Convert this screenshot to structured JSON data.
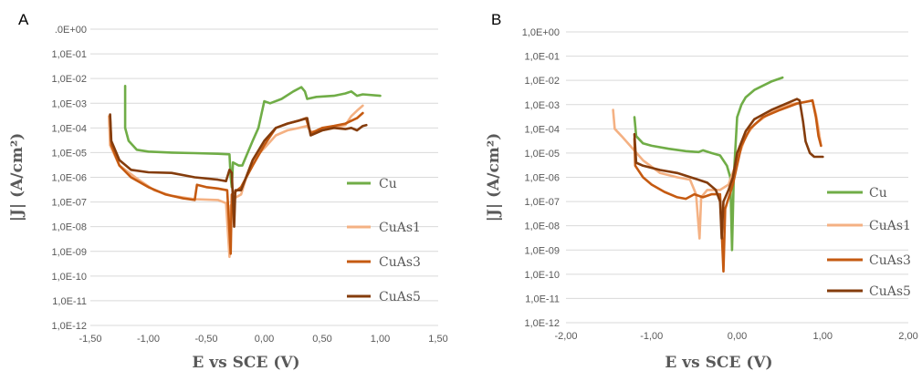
{
  "chart_data": [
    {
      "type": "line",
      "panel_label": "A",
      "xlabel": "E vs SCE (V)",
      "ylabel": "|J| (A/cm²)",
      "x_scale": "linear",
      "y_scale": "log",
      "xlim": [
        -1.5,
        1.5
      ],
      "ylim": [
        1e-12,
        1
      ],
      "x_ticks": [
        "-1,50",
        "-1,00",
        "-0,50",
        "0,00",
        "0,50",
        "1,00",
        "1,50"
      ],
      "y_ticks": [
        ".0E+00",
        "1,0E-01",
        "1,0E-02",
        "1,0E-03",
        "1,0E-04",
        "1,0E-05",
        "1,0E-06",
        "1,0E-07",
        "1,0E-08",
        "1,0E-09",
        "1,0E-10",
        "1,0E-11",
        "1,0E-12"
      ],
      "grid": "horizontal",
      "legend_position": "right",
      "series": [
        {
          "name": "Cu",
          "color": "#70ad47",
          "points": [
            [
              -1.2,
              0.005
            ],
            [
              -1.2,
              0.0001
            ],
            [
              -1.17,
              3e-05
            ],
            [
              -1.1,
              1.3e-05
            ],
            [
              -1.0,
              1.1e-05
            ],
            [
              -0.8,
              1e-05
            ],
            [
              -0.6,
              9.5e-06
            ],
            [
              -0.4,
              9e-06
            ],
            [
              -0.3,
              8.5e-06
            ],
            [
              -0.29,
              1e-06
            ],
            [
              -0.28,
              4e-07
            ],
            [
              -0.27,
              4e-06
            ],
            [
              -0.22,
              3e-06
            ],
            [
              -0.19,
              3e-06
            ],
            [
              -0.1,
              3e-05
            ],
            [
              -0.05,
              0.0001
            ],
            [
              0.0,
              0.0012
            ],
            [
              0.05,
              0.001
            ],
            [
              0.15,
              0.0015
            ],
            [
              0.25,
              0.003
            ],
            [
              0.32,
              0.0045
            ],
            [
              0.35,
              0.003
            ],
            [
              0.37,
              0.0015
            ],
            [
              0.45,
              0.0018
            ],
            [
              0.6,
              0.002
            ],
            [
              0.7,
              0.0025
            ],
            [
              0.75,
              0.003
            ],
            [
              0.8,
              0.002
            ],
            [
              0.85,
              0.0023
            ],
            [
              1.0,
              0.002
            ]
          ]
        },
        {
          "name": "CuAs1",
          "color": "#f4b183",
          "points": [
            [
              -1.34,
              0.0003
            ],
            [
              -1.33,
              2e-05
            ],
            [
              -1.25,
              3e-06
            ],
            [
              -1.1,
              9e-07
            ],
            [
              -0.95,
              3e-07
            ],
            [
              -0.8,
              1.8e-07
            ],
            [
              -0.6,
              1.3e-07
            ],
            [
              -0.4,
              1.2e-07
            ],
            [
              -0.33,
              9e-08
            ],
            [
              -0.3,
              6e-10
            ],
            [
              -0.29,
              7e-08
            ],
            [
              -0.25,
              1.5e-07
            ],
            [
              -0.2,
              2e-07
            ],
            [
              -0.15,
              1.2e-06
            ],
            [
              -0.1,
              5e-06
            ],
            [
              0.0,
              1.5e-05
            ],
            [
              0.1,
              5e-05
            ],
            [
              0.2,
              8e-05
            ],
            [
              0.3,
              0.0001
            ],
            [
              0.37,
              0.00012
            ],
            [
              0.4,
              7e-05
            ],
            [
              0.5,
              8e-05
            ],
            [
              0.6,
              0.0001
            ],
            [
              0.7,
              0.00013
            ],
            [
              0.75,
              0.0003
            ],
            [
              0.8,
              0.0005
            ],
            [
              0.85,
              0.0008
            ]
          ]
        },
        {
          "name": "CuAs3",
          "color": "#c55a11",
          "points": [
            [
              -1.33,
              0.0003
            ],
            [
              -1.32,
              2e-05
            ],
            [
              -1.25,
              3e-06
            ],
            [
              -1.15,
              1e-06
            ],
            [
              -1.0,
              4e-07
            ],
            [
              -0.85,
              2e-07
            ],
            [
              -0.7,
              1.4e-07
            ],
            [
              -0.6,
              1.2e-07
            ],
            [
              -0.58,
              5e-07
            ],
            [
              -0.5,
              4e-07
            ],
            [
              -0.4,
              3.5e-07
            ],
            [
              -0.32,
              3e-07
            ],
            [
              -0.29,
              8e-10
            ],
            [
              -0.28,
              2e-07
            ],
            [
              -0.2,
              4e-07
            ],
            [
              -0.1,
              3e-06
            ],
            [
              0.0,
              2e-05
            ],
            [
              0.1,
              0.0001
            ],
            [
              0.2,
              0.00015
            ],
            [
              0.3,
              0.0002
            ],
            [
              0.36,
              0.00025
            ],
            [
              0.4,
              6e-05
            ],
            [
              0.5,
              0.0001
            ],
            [
              0.6,
              0.00012
            ],
            [
              0.7,
              0.00015
            ],
            [
              0.8,
              0.00025
            ],
            [
              0.85,
              0.0004
            ]
          ]
        },
        {
          "name": "CuAs5",
          "color": "#843c0c",
          "points": [
            [
              -1.33,
              0.00035
            ],
            [
              -1.32,
              3e-05
            ],
            [
              -1.25,
              5e-06
            ],
            [
              -1.15,
              2e-06
            ],
            [
              -1.0,
              1.6e-06
            ],
            [
              -0.8,
              1.5e-06
            ],
            [
              -0.6,
              1e-06
            ],
            [
              -0.4,
              8e-07
            ],
            [
              -0.33,
              7e-07
            ],
            [
              -0.3,
              2e-06
            ],
            [
              -0.28,
              1.5e-06
            ],
            [
              -0.26,
              1e-08
            ],
            [
              -0.25,
              3e-07
            ],
            [
              -0.2,
              3e-07
            ],
            [
              -0.1,
              5e-06
            ],
            [
              0.0,
              3e-05
            ],
            [
              0.1,
              0.0001
            ],
            [
              0.2,
              0.00015
            ],
            [
              0.3,
              0.0002
            ],
            [
              0.37,
              0.00025
            ],
            [
              0.4,
              5e-05
            ],
            [
              0.5,
              8e-05
            ],
            [
              0.6,
              0.0001
            ],
            [
              0.7,
              9e-05
            ],
            [
              0.75,
              0.0001
            ],
            [
              0.8,
              8e-05
            ],
            [
              0.85,
              0.00012
            ],
            [
              0.88,
              0.00013
            ]
          ]
        }
      ]
    },
    {
      "type": "line",
      "panel_label": "B",
      "xlabel": "E vs SCE (V)",
      "ylabel": "|J| (A/cm²)",
      "x_scale": "linear",
      "y_scale": "log",
      "xlim": [
        -2,
        2
      ],
      "ylim": [
        1e-12,
        1
      ],
      "x_ticks": [
        "-2,00",
        "-1,00",
        "0,00",
        "1,00",
        "2,00"
      ],
      "y_ticks": [
        "1,0E+00",
        "1,0E-01",
        "1,0E-02",
        "1,0E-03",
        "1,0E-04",
        "1,0E-05",
        "1,0E-06",
        "1,0E-07",
        "1,0E-08",
        "1,0E-09",
        "1,0E-10",
        "1,0E-11",
        "1,0E-12"
      ],
      "grid": "horizontal",
      "legend_position": "right",
      "series": [
        {
          "name": "Cu",
          "color": "#70ad47",
          "points": [
            [
              -1.2,
              0.0003
            ],
            [
              -1.18,
              5e-05
            ],
            [
              -1.1,
              2.5e-05
            ],
            [
              -1.0,
              2e-05
            ],
            [
              -0.8,
              1.5e-05
            ],
            [
              -0.6,
              1.2e-05
            ],
            [
              -0.45,
              1.1e-05
            ],
            [
              -0.4,
              1.3e-05
            ],
            [
              -0.3,
              1e-05
            ],
            [
              -0.2,
              8e-06
            ],
            [
              -0.12,
              3e-06
            ],
            [
              -0.08,
              1e-06
            ],
            [
              -0.06,
              1e-09
            ],
            [
              -0.04,
              1e-06
            ],
            [
              0.0,
              0.0003
            ],
            [
              0.05,
              0.001
            ],
            [
              0.1,
              0.002
            ],
            [
              0.2,
              0.004
            ],
            [
              0.3,
              0.006
            ],
            [
              0.4,
              0.009
            ],
            [
              0.5,
              0.012
            ],
            [
              0.53,
              0.013
            ]
          ]
        },
        {
          "name": "CuAs1",
          "color": "#f4b183",
          "points": [
            [
              -1.45,
              0.0006
            ],
            [
              -1.43,
              0.0001
            ],
            [
              -1.35,
              5e-05
            ],
            [
              -1.25,
              2e-05
            ],
            [
              -1.1,
              5e-06
            ],
            [
              -0.9,
              1.5e-06
            ],
            [
              -0.7,
              1e-06
            ],
            [
              -0.55,
              8e-07
            ],
            [
              -0.48,
              2e-07
            ],
            [
              -0.44,
              3e-09
            ],
            [
              -0.42,
              1.5e-07
            ],
            [
              -0.35,
              3e-07
            ],
            [
              -0.2,
              3e-07
            ],
            [
              -0.1,
              5e-07
            ],
            [
              0.0,
              5e-06
            ],
            [
              0.1,
              5e-05
            ],
            [
              0.2,
              0.00015
            ],
            [
              0.4,
              0.0005
            ],
            [
              0.6,
              0.001
            ],
            [
              0.8,
              0.0013
            ],
            [
              0.88,
              0.0015
            ],
            [
              0.92,
              0.0004
            ],
            [
              0.95,
              0.0001
            ],
            [
              0.98,
              2e-05
            ]
          ]
        },
        {
          "name": "CuAs3",
          "color": "#c55a11",
          "points": [
            [
              -1.2,
              4e-05
            ],
            [
              -1.19,
              3e-06
            ],
            [
              -1.1,
              1e-06
            ],
            [
              -1.0,
              5e-07
            ],
            [
              -0.85,
              2.5e-07
            ],
            [
              -0.7,
              1.5e-07
            ],
            [
              -0.6,
              1.3e-07
            ],
            [
              -0.5,
              2e-07
            ],
            [
              -0.4,
              1.5e-07
            ],
            [
              -0.3,
              2e-07
            ],
            [
              -0.2,
              2e-07
            ],
            [
              -0.16,
              1.3e-10
            ],
            [
              -0.14,
              5e-08
            ],
            [
              -0.05,
              5e-07
            ],
            [
              0.05,
              2e-05
            ],
            [
              0.15,
              0.0001
            ],
            [
              0.3,
              0.0003
            ],
            [
              0.5,
              0.0006
            ],
            [
              0.7,
              0.0011
            ],
            [
              0.85,
              0.0014
            ],
            [
              0.88,
              0.0015
            ],
            [
              0.92,
              0.0003
            ],
            [
              0.95,
              5e-05
            ],
            [
              0.98,
              2e-05
            ]
          ]
        },
        {
          "name": "CuAs5",
          "color": "#843c0c",
          "points": [
            [
              -1.2,
              6e-05
            ],
            [
              -1.18,
              4e-06
            ],
            [
              -1.1,
              3e-06
            ],
            [
              -0.9,
              2e-06
            ],
            [
              -0.7,
              1.5e-06
            ],
            [
              -0.5,
              9e-07
            ],
            [
              -0.35,
              6e-07
            ],
            [
              -0.25,
              3e-07
            ],
            [
              -0.2,
              1e-07
            ],
            [
              -0.18,
              3e-09
            ],
            [
              -0.16,
              1e-07
            ],
            [
              -0.1,
              3e-07
            ],
            [
              -0.05,
              1e-06
            ],
            [
              0.0,
              1e-05
            ],
            [
              0.1,
              8e-05
            ],
            [
              0.2,
              0.00025
            ],
            [
              0.4,
              0.0006
            ],
            [
              0.6,
              0.0012
            ],
            [
              0.7,
              0.0017
            ],
            [
              0.73,
              0.0015
            ],
            [
              0.77,
              0.0002
            ],
            [
              0.8,
              3e-05
            ],
            [
              0.85,
              1e-05
            ],
            [
              0.9,
              7e-06
            ],
            [
              1.0,
              7e-06
            ]
          ]
        }
      ]
    }
  ]
}
